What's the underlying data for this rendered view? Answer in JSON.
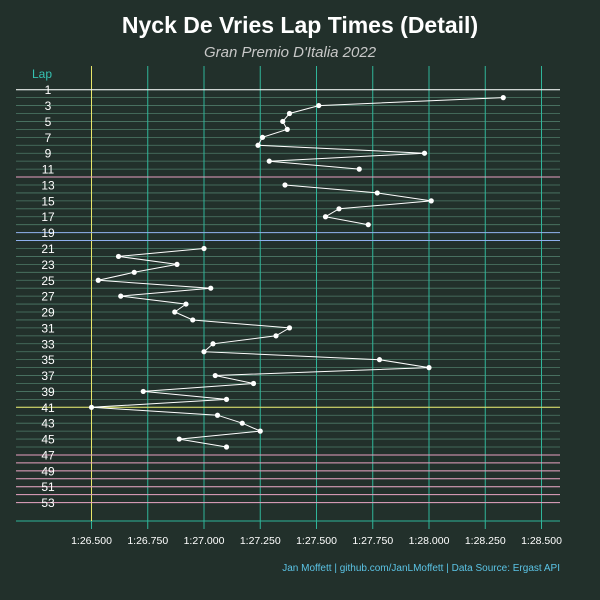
{
  "chart_data": {
    "type": "line",
    "title": "Nyck De Vries Lap Times (Detail)",
    "subtitle": "Gran Premio D'Italia 2022",
    "ylabel": "Lap",
    "xlabel": "",
    "caption": "Jan Moffett | github.com/JanLMoffett | Data Source: Ergast API",
    "x_ticks": [
      86.5,
      86.75,
      87.0,
      87.25,
      87.5,
      87.75,
      88.0,
      88.25,
      88.5
    ],
    "x_tick_labels": [
      "1:26.500",
      "1:26.750",
      "1:27.000",
      "1:27.250",
      "1:27.500",
      "1:27.750",
      "1:28.000",
      "1:28.250",
      "1:28.500"
    ],
    "xlim": [
      86.3,
      88.7
    ],
    "ylim": [
      0,
      54
    ],
    "y_tick_labels": [
      "1",
      "3",
      "5",
      "7",
      "9",
      "11",
      "13",
      "15",
      "17",
      "19",
      "21",
      "23",
      "25",
      "27",
      "29",
      "31",
      "33",
      "35",
      "37",
      "39",
      "41",
      "43",
      "45",
      "47",
      "49",
      "51",
      "53"
    ],
    "y_ticks": [
      1,
      3,
      5,
      7,
      9,
      11,
      13,
      15,
      17,
      19,
      21,
      23,
      25,
      27,
      29,
      31,
      33,
      35,
      37,
      39,
      41,
      43,
      45,
      47,
      49,
      51,
      53
    ],
    "reference_x": 86.5,
    "lap_lines": [
      {
        "lap": 1,
        "color": "#ffffff"
      },
      {
        "lap": 12,
        "color": "#e8a0c0"
      },
      {
        "lap": 19,
        "color": "#8fb0ee"
      },
      {
        "lap": 20,
        "color": "#8fb0ee"
      },
      {
        "lap": 41,
        "color": "#e8e66a"
      },
      {
        "lap": 47,
        "color": "#e8a0c0"
      },
      {
        "lap": 48,
        "color": "#e8a0c0"
      },
      {
        "lap": 49,
        "color": "#e8a0c0"
      },
      {
        "lap": 50,
        "color": "#e8a0c0"
      },
      {
        "lap": 51,
        "color": "#e8a0c0"
      },
      {
        "lap": 52,
        "color": "#e8a0c0"
      },
      {
        "lap": 53,
        "color": "#e8a0c0"
      }
    ],
    "series": [
      {
        "segments": [
          {
            "laps": [
              2,
              3,
              4,
              5,
              6,
              7,
              8,
              9,
              10,
              11
            ],
            "values": [
              88.33,
              87.51,
              87.38,
              87.35,
              87.37,
              87.26,
              87.24,
              87.98,
              87.29,
              87.69
            ]
          },
          {
            "laps": [
              13,
              14,
              15,
              16,
              17,
              18
            ],
            "values": [
              87.36,
              87.77,
              88.01,
              87.6,
              87.54,
              87.73
            ]
          },
          {
            "laps": [
              21,
              22,
              23,
              24,
              25,
              26,
              27,
              28,
              29,
              30,
              31,
              32,
              33,
              34,
              35,
              36,
              37,
              38,
              39,
              40,
              41,
              42,
              43,
              44,
              45,
              46
            ],
            "values": [
              87.0,
              86.62,
              86.88,
              86.69,
              86.53,
              87.03,
              86.63,
              86.92,
              86.87,
              86.95,
              87.38,
              87.32,
              87.04,
              87.0,
              87.78,
              88.0,
              87.05,
              87.22,
              86.73,
              87.1,
              86.5,
              87.06,
              87.17,
              87.25,
              86.89,
              87.1
            ]
          }
        ]
      }
    ],
    "colors": {
      "background": "#22302b",
      "grid_vertical": "#2fb59a",
      "grid_horizontal": "#4e7a68",
      "line": "#ffffff",
      "axis_text": "#ffffff",
      "lap_label": "#35c2b2",
      "caption": "#5bc4e6",
      "subtitle": "#c8c8c8",
      "reference": "#e8e66a"
    }
  }
}
